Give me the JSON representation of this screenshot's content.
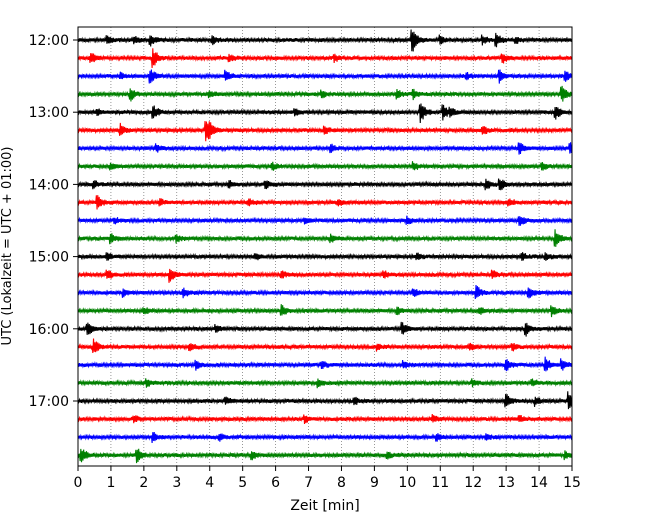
{
  "chart_data": {
    "type": "line",
    "title": "",
    "xlabel": "Zeit  [min]",
    "ylabel": "UTC (Lokalzeit = UTC + 01:00)",
    "xlim": [
      0,
      15
    ],
    "x_ticks": [
      0,
      1,
      2,
      3,
      4,
      5,
      6,
      7,
      8,
      9,
      10,
      11,
      12,
      13,
      14,
      15
    ],
    "x_tick_labels": [
      "0",
      "1",
      "2",
      "3",
      "4",
      "5",
      "6",
      "7",
      "8",
      "9",
      "10",
      "11",
      "12",
      "13",
      "14",
      "15"
    ],
    "grid": "vertical dotted at each minute",
    "trace_interval_minutes": 15,
    "row_times": [
      "12:00",
      "12:15",
      "12:30",
      "12:45",
      "13:00",
      "13:15",
      "13:30",
      "13:45",
      "14:00",
      "14:15",
      "14:30",
      "14:45",
      "15:00",
      "15:15",
      "15:30",
      "15:45",
      "16:00",
      "16:15",
      "16:30",
      "16:45",
      "17:00",
      "17:15",
      "17:30",
      "17:45"
    ],
    "y_tick_labels": [
      "12:00",
      "13:00",
      "14:00",
      "15:00",
      "16:00",
      "17:00"
    ],
    "color_cycle": [
      "#000000",
      "#ff0000",
      "#0000ff",
      "#008000"
    ],
    "events": [
      [
        [
          0.9,
          0.4
        ],
        [
          1.7,
          0.5
        ],
        [
          2.2,
          0.6
        ],
        [
          4.1,
          0.5
        ],
        [
          10.15,
          1.6
        ],
        [
          11.0,
          0.5
        ],
        [
          12.3,
          0.5
        ],
        [
          12.7,
          0.8
        ],
        [
          13.3,
          0.4
        ]
      ],
      [
        [
          0.4,
          0.6
        ],
        [
          2.3,
          1.0
        ],
        [
          4.6,
          0.4
        ],
        [
          7.8,
          0.4
        ],
        [
          12.9,
          0.5
        ]
      ],
      [
        [
          1.3,
          0.4
        ],
        [
          2.2,
          0.9
        ],
        [
          4.5,
          0.6
        ],
        [
          11.8,
          0.4
        ],
        [
          12.8,
          0.7
        ],
        [
          14.8,
          0.6
        ]
      ],
      [
        [
          1.6,
          0.8
        ],
        [
          4.0,
          0.4
        ],
        [
          7.4,
          0.4
        ],
        [
          9.7,
          0.5
        ],
        [
          10.2,
          0.5
        ],
        [
          14.7,
          0.9
        ]
      ],
      [
        [
          0.6,
          0.4
        ],
        [
          2.3,
          0.7
        ],
        [
          6.6,
          0.4
        ],
        [
          10.4,
          1.4
        ],
        [
          11.1,
          0.9
        ],
        [
          11.3,
          0.5
        ],
        [
          14.5,
          0.9
        ]
      ],
      [
        [
          1.3,
          0.8
        ],
        [
          3.9,
          1.2
        ],
        [
          4.0,
          0.6
        ],
        [
          7.5,
          0.4
        ],
        [
          12.3,
          0.5
        ]
      ],
      [
        [
          2.4,
          0.4
        ],
        [
          7.7,
          0.4
        ],
        [
          13.4,
          0.7
        ],
        [
          14.95,
          0.6
        ]
      ],
      [
        [
          1.0,
          0.4
        ],
        [
          5.9,
          0.4
        ],
        [
          10.2,
          0.4
        ],
        [
          14.1,
          0.4
        ]
      ],
      [
        [
          0.5,
          0.4
        ],
        [
          4.6,
          0.4
        ],
        [
          5.7,
          0.4
        ],
        [
          12.4,
          0.6
        ],
        [
          12.8,
          0.8
        ]
      ],
      [
        [
          0.6,
          0.8
        ],
        [
          2.5,
          0.4
        ],
        [
          5.2,
          0.4
        ],
        [
          7.9,
          0.4
        ],
        [
          13.1,
          0.4
        ]
      ],
      [
        [
          1.1,
          0.4
        ],
        [
          6.9,
          0.4
        ],
        [
          10.0,
          0.4
        ],
        [
          13.4,
          0.7
        ]
      ],
      [
        [
          1.0,
          0.6
        ],
        [
          3.0,
          0.4
        ],
        [
          7.7,
          0.4
        ],
        [
          14.5,
          1.0
        ]
      ],
      [
        [
          0.9,
          0.4
        ],
        [
          5.4,
          0.4
        ],
        [
          10.3,
          0.4
        ],
        [
          13.5,
          0.4
        ],
        [
          14.2,
          0.4
        ]
      ],
      [
        [
          0.9,
          0.6
        ],
        [
          2.8,
          0.8
        ],
        [
          6.2,
          0.4
        ],
        [
          9.3,
          0.4
        ],
        [
          12.6,
          0.4
        ]
      ],
      [
        [
          1.4,
          0.4
        ],
        [
          3.2,
          0.6
        ],
        [
          10.2,
          0.4
        ],
        [
          12.1,
          0.8
        ],
        [
          13.7,
          0.7
        ]
      ],
      [
        [
          2.0,
          0.4
        ],
        [
          6.2,
          0.6
        ],
        [
          9.7,
          0.4
        ],
        [
          12.2,
          0.4
        ],
        [
          14.4,
          0.6
        ]
      ],
      [
        [
          0.3,
          0.7
        ],
        [
          4.2,
          0.4
        ],
        [
          9.85,
          0.7
        ],
        [
          13.6,
          0.9
        ]
      ],
      [
        [
          0.5,
          0.8
        ],
        [
          3.4,
          0.4
        ],
        [
          9.1,
          0.4
        ],
        [
          11.9,
          0.4
        ],
        [
          13.2,
          0.4
        ]
      ],
      [
        [
          3.6,
          0.6
        ],
        [
          7.4,
          0.4
        ],
        [
          9.9,
          0.4
        ],
        [
          13.0,
          0.8
        ],
        [
          14.2,
          0.9
        ],
        [
          14.7,
          0.6
        ]
      ],
      [
        [
          2.1,
          0.4
        ],
        [
          7.3,
          0.4
        ],
        [
          12.0,
          0.4
        ],
        [
          13.8,
          0.4
        ]
      ],
      [
        [
          4.5,
          0.4
        ],
        [
          8.4,
          0.4
        ],
        [
          13.0,
          0.9
        ],
        [
          13.9,
          0.5
        ],
        [
          14.9,
          1.2
        ]
      ],
      [
        [
          1.7,
          0.4
        ],
        [
          6.9,
          0.4
        ],
        [
          10.8,
          0.4
        ],
        [
          13.4,
          0.4
        ]
      ],
      [
        [
          2.3,
          0.5
        ],
        [
          4.3,
          0.4
        ],
        [
          10.9,
          0.4
        ],
        [
          12.4,
          0.4
        ]
      ],
      [
        [
          0.1,
          1.0
        ],
        [
          1.8,
          0.9
        ],
        [
          5.3,
          0.4
        ],
        [
          9.4,
          0.4
        ],
        [
          14.8,
          0.4
        ]
      ]
    ]
  }
}
